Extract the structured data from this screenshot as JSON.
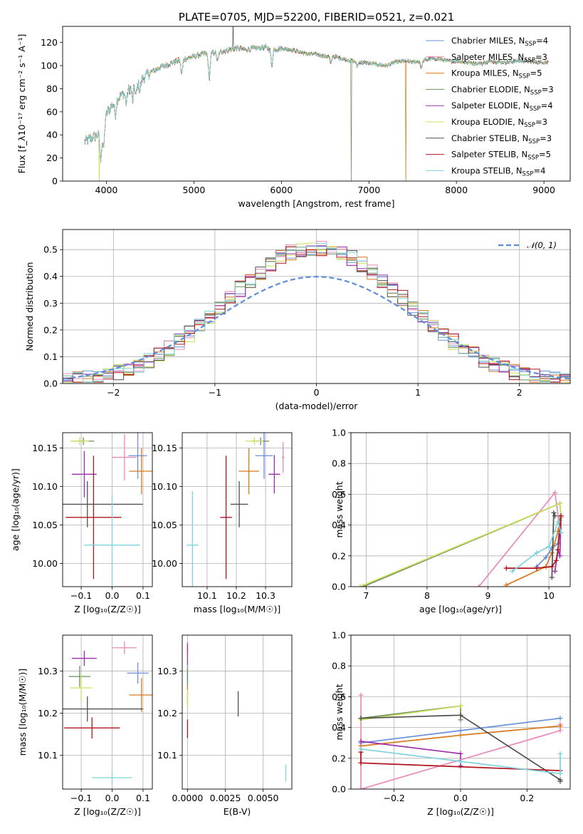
{
  "chart_data": [
    {
      "type": "line",
      "title": "PLATE=0705, MJD=52200, FIBERID=0521, z=0.021",
      "xlabel": "wavelength [Angstrom, rest frame]",
      "ylabel": "Flux [f_λ10⁻¹⁷ erg cm⁻² s⁻¹ A⁻¹]",
      "xlim": [
        3500,
        9300
      ],
      "ylim": [
        0,
        134
      ],
      "xticks": [
        "4000",
        "5000",
        "6000",
        "7000",
        "8000",
        "9000"
      ],
      "yticks": [
        "0",
        "20",
        "40",
        "60",
        "80",
        "100",
        "120"
      ],
      "legend_position": "top-right",
      "continuum": {
        "x": [
          3750,
          3850,
          3950,
          4000,
          4100,
          4200,
          4300,
          4400,
          4500,
          4600,
          4700,
          4800,
          4900,
          5000,
          5100,
          5200,
          5300,
          5400,
          5500,
          5600,
          5700,
          5800,
          5900,
          6000,
          6100,
          6200,
          6300,
          6400,
          6500,
          6600,
          6700,
          6800,
          6900,
          7000,
          7100,
          7200,
          7300,
          7400,
          7500,
          7600,
          7700,
          7800,
          7900,
          8000,
          8100,
          8200,
          8300,
          8400,
          8500,
          8600,
          8700,
          8800,
          8900,
          9000
        ],
        "y": [
          34,
          38,
          42,
          58,
          70,
          76,
          82,
          88,
          94,
          98,
          101,
          104,
          106,
          108,
          110,
          111,
          112,
          114,
          115,
          114,
          115,
          116,
          114,
          115,
          114,
          112,
          110,
          110,
          108,
          108,
          106,
          104,
          103,
          102,
          101,
          100,
          103,
          104,
          103,
          104,
          106,
          106,
          104,
          104,
          103,
          102,
          102,
          104,
          103,
          103,
          104,
          104,
          103,
          103
        ]
      },
      "series": [
        {
          "name": "Chabrier MILES, N_SSP=4",
          "color": "#6a8fdb",
          "drop_at": null
        },
        {
          "name": "Salpeter MILES, N_SSP=3",
          "color": "#e88ab8",
          "drop_at": null
        },
        {
          "name": "Kroupa MILES, N_SSP=5",
          "color": "#d87a1e",
          "drop_at": 7420
        },
        {
          "name": "Chabrier ELODIE, N_SSP=3",
          "color": "#6d8f5e",
          "drop_at": null
        },
        {
          "name": "Salpeter ELODIE, N_SSP=4",
          "color": "#9b2fa8",
          "drop_at": null
        },
        {
          "name": "Kroupa ELODIE, N_SSP=3",
          "color": "#c8e05a",
          "drop_at": 3920
        },
        {
          "name": "Chabrier STELIB, N_SSP=3",
          "color": "#505050",
          "drop_at": null
        },
        {
          "name": "Salpeter STELIB, N_SSP=5",
          "color": "#b0141e",
          "drop_at": null
        },
        {
          "name": "Kroupa STELIB, N_SSP=4",
          "color": "#7fd3dc",
          "drop_at": null
        }
      ]
    },
    {
      "type": "area",
      "xlabel": "(data-model)/error",
      "ylabel": "Normed distribution",
      "xlim": [
        -2.5,
        2.5
      ],
      "ylim": [
        0,
        0.575
      ],
      "xticks": [
        "−2",
        "−1",
        "0",
        "1",
        "2"
      ],
      "yticks": [
        "0.0",
        "0.1",
        "0.2",
        "0.3",
        "0.4",
        "0.5"
      ],
      "legend": "𝒩(0, 1)",
      "reference_color": "#5b8bd9",
      "bin_width": 0.1,
      "bin_range": [
        -2.5,
        2.5
      ]
    },
    {
      "type": "scatter",
      "xlabel": "Z [log₁₀(Z/Z☉)]",
      "ylabel": "age  [log₁₀(age/yr)]",
      "xlim": [
        -0.16,
        0.13
      ],
      "ylim": [
        9.97,
        10.17
      ],
      "xticks": [
        "−0.1",
        "0.0",
        "0.1"
      ],
      "yticks": [
        "10.00",
        "10.05",
        "10.10",
        "10.15"
      ],
      "points": [
        {
          "x": 0.083,
          "y": 10.14,
          "xerr": 0.03,
          "yerr": 0.03,
          "c": 0
        },
        {
          "x": 0.04,
          "y": 10.138,
          "xerr": 0.04,
          "yerr": 0.03,
          "c": 1
        },
        {
          "x": 0.095,
          "y": 10.12,
          "xerr": 0.04,
          "yerr": 0.03,
          "c": 2
        },
        {
          "x": -0.093,
          "y": 10.159,
          "xerr": 0.035,
          "yerr": 0.005,
          "c": 3
        },
        {
          "x": -0.09,
          "y": 10.116,
          "xerr": 0.04,
          "yerr": 0.03,
          "c": 4
        },
        {
          "x": -0.105,
          "y": 10.159,
          "xerr": 0.03,
          "yerr": 0.005,
          "c": 5
        },
        {
          "x": -0.08,
          "y": 10.077,
          "xerr": 0.18,
          "yerr": 0.03,
          "c": 6
        },
        {
          "x": -0.06,
          "y": 10.06,
          "xerr": 0.09,
          "yerr": 0.08,
          "c": 7
        },
        {
          "x": 0.0,
          "y": 10.024,
          "xerr": 0.09,
          "yerr": 0.065,
          "c": 8
        }
      ]
    },
    {
      "type": "scatter",
      "xlabel": "mass [log₁₀(M/M☉)]",
      "ylabel": "",
      "xlim": [
        10.015,
        10.39
      ],
      "ylim": [
        9.97,
        10.17
      ],
      "xticks": [
        "10.1",
        "10.2",
        "10.3"
      ],
      "yticks": [
        "10.00",
        "10.05",
        "10.10",
        "10.15"
      ],
      "points": [
        {
          "x": 10.295,
          "y": 10.14,
          "xerr": 0.03,
          "yerr": 0.03,
          "c": 0
        },
        {
          "x": 10.36,
          "y": 10.138,
          "xerr": 0.005,
          "yerr": 0.02,
          "c": 1
        },
        {
          "x": 10.243,
          "y": 10.12,
          "xerr": 0.035,
          "yerr": 0.03,
          "c": 2
        },
        {
          "x": 10.283,
          "y": 10.159,
          "xerr": 0.03,
          "yerr": 0.005,
          "c": 3
        },
        {
          "x": 10.33,
          "y": 10.116,
          "xerr": 0.02,
          "yerr": 0.025,
          "c": 4
        },
        {
          "x": 10.262,
          "y": 10.159,
          "xerr": 0.03,
          "yerr": 0.005,
          "c": 5
        },
        {
          "x": 10.21,
          "y": 10.077,
          "xerr": 0.03,
          "yerr": 0.03,
          "c": 6
        },
        {
          "x": 10.165,
          "y": 10.06,
          "xerr": 0.02,
          "yerr": 0.08,
          "c": 7
        },
        {
          "x": 10.05,
          "y": 10.024,
          "xerr": 0.02,
          "yerr": 0.07,
          "c": 8
        }
      ]
    },
    {
      "type": "line",
      "xlabel": "age  [log₁₀(age/yr)]",
      "ylabel": "mass weight",
      "xlim": [
        6.75,
        10.35
      ],
      "ylim": [
        0,
        1
      ],
      "xticks": [
        "7",
        "8",
        "9",
        "10"
      ],
      "yticks": [
        "0.0",
        "0.2",
        "0.4",
        "0.6",
        "0.8",
        "1.0"
      ],
      "series": [
        {
          "c": 0,
          "x": [
            9.8,
            9.95,
            10.05,
            10.15,
            10.18
          ],
          "y": [
            0.13,
            0.19,
            0.25,
            0.28,
            0.45
          ]
        },
        {
          "c": 1,
          "x": [
            8.85,
            10.1,
            10.18
          ],
          "y": [
            0.0,
            0.61,
            0.38
          ]
        },
        {
          "c": 2,
          "x": [
            9.3,
            9.95,
            10.05,
            10.15,
            10.2
          ],
          "y": [
            0.01,
            0.13,
            0.22,
            0.36,
            0.45
          ]
        },
        {
          "c": 3,
          "x": [
            6.95,
            10.18,
            10.2
          ],
          "y": [
            0.0,
            0.54,
            0.45
          ]
        },
        {
          "c": 4,
          "x": [
            10.1,
            10.15,
            10.18,
            10.2
          ],
          "y": [
            0.1,
            0.24,
            0.2,
            0.45
          ]
        },
        {
          "c": 5,
          "x": [
            6.9,
            10.18,
            10.2
          ],
          "y": [
            0.0,
            0.54,
            0.45
          ]
        },
        {
          "c": 6,
          "x": [
            10.05,
            10.08,
            10.1
          ],
          "y": [
            0.06,
            0.48,
            0.46
          ]
        },
        {
          "c": 7,
          "x": [
            9.3,
            9.8,
            10.05,
            10.12,
            10.15,
            10.2
          ],
          "y": [
            0.12,
            0.12,
            0.13,
            0.17,
            0.24,
            0.46
          ]
        },
        {
          "c": 8,
          "x": [
            9.4,
            9.8,
            10.0,
            10.15,
            10.2
          ],
          "y": [
            0.1,
            0.22,
            0.26,
            0.42,
            0.35
          ]
        }
      ]
    },
    {
      "type": "scatter",
      "xlabel": "Z [log₁₀(Z/Z☉)]",
      "ylabel": "mass [log₁₀(M/M☉)]",
      "xlim": [
        -0.16,
        0.13
      ],
      "ylim": [
        10.02,
        10.385
      ],
      "xticks": [
        "−0.1",
        "0.0",
        "0.1"
      ],
      "yticks": [
        "10.1",
        "10.2",
        "10.3"
      ],
      "points": [
        {
          "x": 0.083,
          "y": 10.295,
          "xerr": 0.035,
          "yerr": 0.025,
          "c": 0
        },
        {
          "x": 0.04,
          "y": 10.355,
          "xerr": 0.04,
          "yerr": 0.015,
          "c": 1
        },
        {
          "x": 0.095,
          "y": 10.243,
          "xerr": 0.04,
          "yerr": 0.04,
          "c": 2
        },
        {
          "x": -0.105,
          "y": 10.287,
          "xerr": 0.035,
          "yerr": 0.025,
          "c": 3
        },
        {
          "x": -0.09,
          "y": 10.33,
          "xerr": 0.04,
          "yerr": 0.018,
          "c": 4
        },
        {
          "x": -0.1,
          "y": 10.26,
          "xerr": 0.035,
          "yerr": 0.03,
          "c": 5
        },
        {
          "x": -0.08,
          "y": 10.21,
          "xerr": 0.18,
          "yerr": 0.03,
          "c": 6
        },
        {
          "x": -0.065,
          "y": 10.165,
          "xerr": 0.09,
          "yerr": 0.025,
          "c": 7
        },
        {
          "x": 0.0,
          "y": 10.047,
          "xerr": 0.065,
          "yerr": 0.015,
          "c": 8
        }
      ]
    },
    {
      "type": "scatter",
      "xlabel": "E(B-V)",
      "ylabel": "",
      "xlim": [
        -0.00035,
        0.0069
      ],
      "ylim": [
        10.02,
        10.385
      ],
      "xticks": [
        "0.0000",
        "0.0025",
        "0.0050"
      ],
      "yticks": [
        "10.1",
        "10.2",
        "10.3"
      ],
      "points": [
        {
          "x": 0.0,
          "y": 10.295,
          "xerr": 0,
          "yerr": 0.025,
          "c": 0
        },
        {
          "x": 0.0,
          "y": 10.355,
          "xerr": 0,
          "yerr": 0.015,
          "c": 1
        },
        {
          "x": 0.0,
          "y": 10.243,
          "xerr": 0,
          "yerr": 0.025,
          "c": 2
        },
        {
          "x": 0.0,
          "y": 10.287,
          "xerr": 0,
          "yerr": 0.02,
          "c": 3
        },
        {
          "x": 0.0,
          "y": 10.34,
          "xerr": 0,
          "yerr": 0.025,
          "c": 4
        },
        {
          "x": 0.0,
          "y": 10.235,
          "xerr": 0,
          "yerr": 0.02,
          "c": 5
        },
        {
          "x": 0.00335,
          "y": 10.222,
          "xerr": 0,
          "yerr": 0.03,
          "c": 6
        },
        {
          "x": 0.0,
          "y": 10.163,
          "xerr": 0,
          "yerr": 0.022,
          "c": 7
        },
        {
          "x": 0.0065,
          "y": 10.058,
          "xerr": 0,
          "yerr": 0.02,
          "c": 8
        }
      ]
    },
    {
      "type": "line",
      "xlabel": "Z [log₁₀(Z/Z☉)]",
      "ylabel": "mass weight",
      "xlim": [
        -0.33,
        0.33
      ],
      "ylim": [
        0,
        1
      ],
      "xticks": [
        "−0.2",
        "0.0",
        "0.2"
      ],
      "yticks": [
        "0.0",
        "0.2",
        "0.4",
        "0.6",
        "0.8",
        "1.0"
      ],
      "series": [
        {
          "c": 0,
          "x": [
            -0.3,
            0.0,
            0.3
          ],
          "y": [
            0.3,
            0.38,
            0.46
          ]
        },
        {
          "c": 1,
          "x": [
            -0.3,
            -0.3,
            0.3,
            0.3
          ],
          "y": [
            0.61,
            0.0,
            0.38,
            0.42
          ]
        },
        {
          "c": 2,
          "x": [
            -0.3,
            0.0,
            0.3
          ],
          "y": [
            0.28,
            0.35,
            0.41
          ]
        },
        {
          "c": 3,
          "x": [
            -0.3,
            0.0,
            0.0
          ],
          "y": [
            0.46,
            0.54,
            0.45
          ]
        },
        {
          "c": 4,
          "x": [
            -0.3,
            0.0,
            0.0
          ],
          "y": [
            0.31,
            0.23,
            0.15
          ]
        },
        {
          "c": 5,
          "x": [
            -0.3,
            0.0
          ],
          "y": [
            0.45,
            0.54
          ]
        },
        {
          "c": 6,
          "x": [
            -0.3,
            0.0,
            0.3,
            0.3
          ],
          "y": [
            0.46,
            0.48,
            0.06,
            0.05
          ]
        },
        {
          "c": 7,
          "x": [
            -0.3,
            -0.3,
            0.3
          ],
          "y": [
            0.24,
            0.17,
            0.12
          ]
        },
        {
          "c": 8,
          "x": [
            -0.3,
            0.0,
            0.3,
            0.3
          ],
          "y": [
            0.26,
            0.18,
            0.1,
            0.23
          ]
        }
      ]
    }
  ]
}
